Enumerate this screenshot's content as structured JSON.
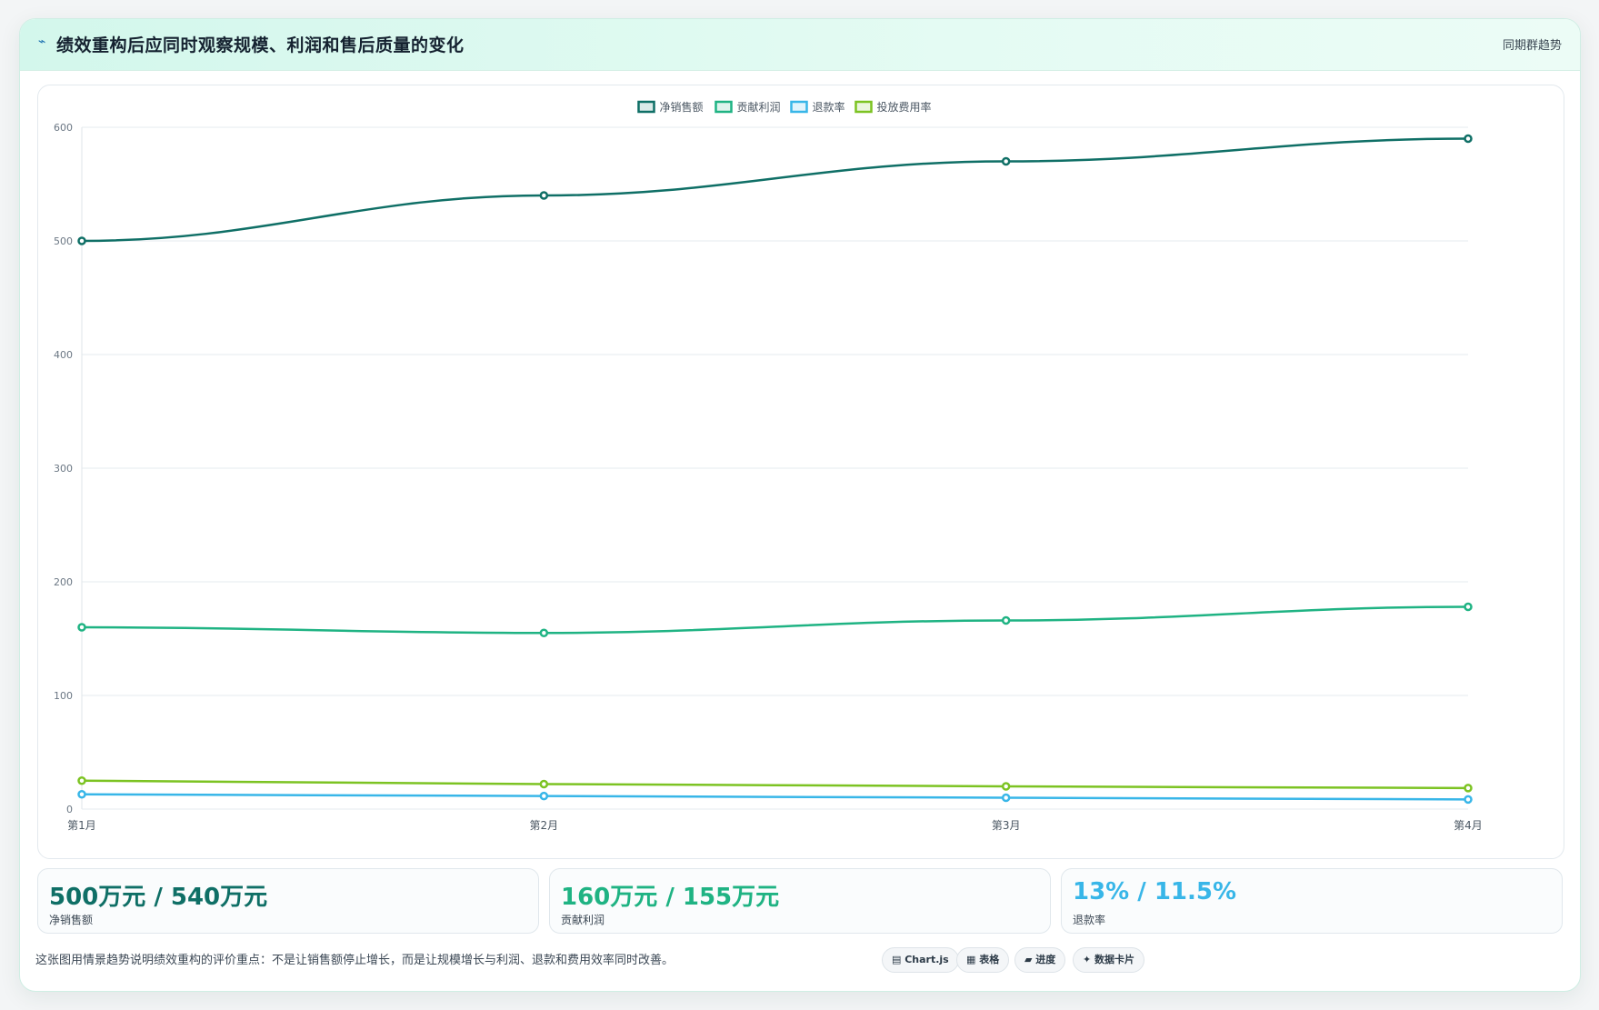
{
  "header": {
    "icon": "pulse-icon",
    "title": "绩效重构后应同时观察规模、利润和售后质量的变化",
    "tag": "同期群趋势"
  },
  "colors": {
    "sales": "#0f6f66",
    "profit": "#1fb383",
    "refund": "#38b6e8",
    "spend": "#7cc322"
  },
  "chart_data": {
    "type": "line",
    "categories": [
      "第1月",
      "第2月",
      "第3月",
      "第4月"
    ],
    "series": [
      {
        "name": "净销售额",
        "values": [
          500,
          540,
          570,
          590
        ]
      },
      {
        "name": "贡献利润",
        "values": [
          160,
          155,
          166,
          178
        ]
      },
      {
        "name": "退款率",
        "values": [
          13,
          11.5,
          10,
          8.5
        ]
      },
      {
        "name": "投放费用率",
        "values": [
          25,
          22,
          20,
          18.5
        ]
      }
    ],
    "ylim": [
      0,
      600
    ],
    "yticks": [
      0,
      100,
      200,
      300,
      400,
      500,
      600
    ],
    "grid": true,
    "legend": "top-center"
  },
  "kpis": [
    {
      "value": "500万元 / 540万元",
      "label": "净销售额"
    },
    {
      "value": "160万元 / 155万元",
      "label": "贡献利润"
    },
    {
      "value": "13% / 11.5%",
      "label": "退款率"
    }
  ],
  "note": "这张图用情景趋势说明绩效重构的评价重点：不是让销售额停止增长，而是让规模增长与利润、退款和费用效率同时改善。",
  "pills": [
    {
      "icon": "chart-icon",
      "label": "▤ Chart.js"
    },
    {
      "icon": "table-icon",
      "label": "▦ 表格"
    },
    {
      "icon": "progress-icon",
      "label": "▰ 进度"
    },
    {
      "icon": "card-icon",
      "label": "✦ 数据卡片"
    }
  ]
}
